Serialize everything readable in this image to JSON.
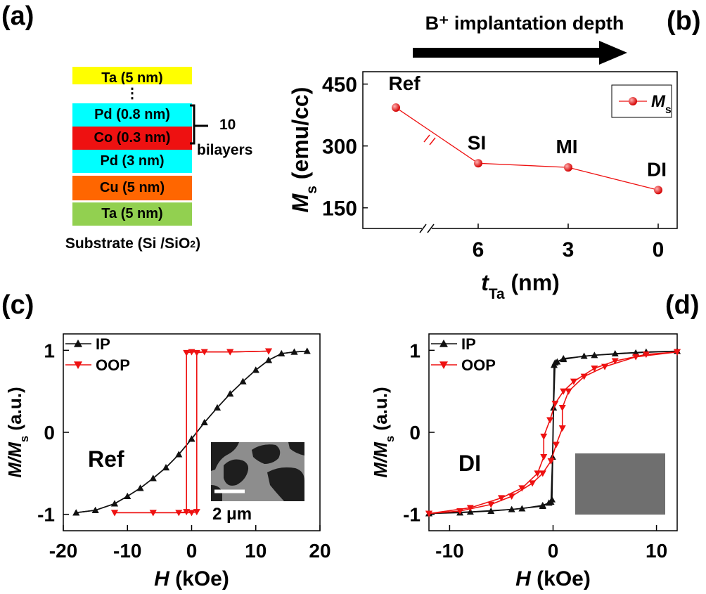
{
  "panel_a": {
    "label": "(a)",
    "layers": [
      {
        "text": "Ta (5 nm)",
        "color": "#ffff00"
      },
      {
        "text": "⋮",
        "color": "#ffffff"
      },
      {
        "text": "Pd (0.8 nm)",
        "color": "#00ffff"
      },
      {
        "text": "Co (0.3 nm)",
        "color": "#ee1111"
      },
      {
        "text": "Pd (3 nm)",
        "color": "#00ffff"
      },
      {
        "text": "Cu (5 nm)",
        "color": "#ff6600"
      },
      {
        "text": "Ta (5 nm)",
        "color": "#92d050"
      }
    ],
    "substrate": {
      "text": "Substrate (Si /SiO",
      "sub": "2",
      "close": ")",
      "color": "#5b9bd5"
    },
    "bracket_label_1": "10",
    "bracket_label_2": "bilayers"
  },
  "chart_data": [
    {
      "panel": "(b)",
      "type": "line",
      "title": "B⁺ implantation depth",
      "xlabel": "t_Ta (nm)",
      "ylabel": "M_s (emu/cc)",
      "x": [
        "Ref",
        "6",
        "3",
        "0"
      ],
      "point_labels": [
        "Ref",
        "SI",
        "MI",
        "DI"
      ],
      "series": [
        {
          "name": "M_s",
          "values": [
            393,
            258,
            248,
            193
          ],
          "color": "#ee1111"
        }
      ],
      "y_ticks": [
        150,
        300,
        450
      ],
      "ylim": [
        100,
        480
      ],
      "x_ticks": [
        "6",
        "3",
        "0"
      ],
      "axis_break": true,
      "legend": "top-right"
    },
    {
      "panel": "(c)",
      "type": "line",
      "xlabel": "H (kOe)",
      "ylabel": "M/M_s (a.u.)",
      "xlim": [
        -20,
        20
      ],
      "ylim": [
        -1.2,
        1.2
      ],
      "x_ticks": [
        -20,
        -10,
        0,
        10,
        20
      ],
      "y_ticks": [
        -1,
        0,
        1
      ],
      "annotation": "Ref",
      "inset_scale": "2 μm",
      "legend": "top-left",
      "series": [
        {
          "name": "IP",
          "color": "#111111",
          "marker": "triangle-up",
          "x": [
            -18,
            -15,
            -12,
            -10,
            -8,
            -6,
            -4,
            -2,
            0,
            2,
            4,
            6,
            8,
            10,
            12,
            14,
            16,
            18
          ],
          "y": [
            -0.98,
            -0.95,
            -0.87,
            -0.78,
            -0.68,
            -0.56,
            -0.43,
            -0.27,
            -0.08,
            0.12,
            0.3,
            0.47,
            0.62,
            0.76,
            0.88,
            0.96,
            0.98,
            0.99
          ]
        },
        {
          "name": "OOP",
          "color": "#ee1111",
          "marker": "triangle-down",
          "branches": [
            {
              "x": [
                -12,
                -6,
                -2,
                -0.8,
                -0.8,
                0,
                6,
                12
              ],
              "y": [
                -0.98,
                -0.98,
                -0.98,
                -0.97,
                0.97,
                0.98,
                0.98,
                0.99
              ]
            },
            {
              "x": [
                12,
                6,
                2,
                0.8,
                0.8,
                0,
                -6,
                -12
              ],
              "y": [
                0.99,
                0.98,
                0.98,
                0.97,
                -0.97,
                -0.98,
                -0.98,
                -0.98
              ]
            }
          ]
        }
      ]
    },
    {
      "panel": "(d)",
      "type": "line",
      "xlabel": "H (kOe)",
      "ylabel": "M/M_s (a.u.)",
      "xlim": [
        -12,
        12
      ],
      "ylim": [
        -1.2,
        1.2
      ],
      "x_ticks": [
        -10,
        0,
        10
      ],
      "y_ticks": [
        -1,
        0,
        1
      ],
      "annotation": "DI",
      "legend": "top-left",
      "series": [
        {
          "name": "IP",
          "color": "#111111",
          "marker": "triangle-up",
          "branches": [
            {
              "x": [
                -12,
                -8,
                -4,
                -1,
                -0.2,
                -0.05,
                0.1,
                0.4,
                1,
                3,
                6,
                9,
                12
              ],
              "y": [
                -0.99,
                -0.97,
                -0.94,
                -0.9,
                -0.85,
                -0.3,
                0.82,
                0.86,
                0.89,
                0.93,
                0.96,
                0.98,
                0.99
              ]
            },
            {
              "x": [
                12,
                8,
                4,
                1,
                0.2,
                0.05,
                -0.1,
                -0.4,
                -1,
                -3,
                -6,
                -9,
                -12
              ],
              "y": [
                0.99,
                0.97,
                0.94,
                0.9,
                0.85,
                0.3,
                -0.82,
                -0.86,
                -0.89,
                -0.93,
                -0.96,
                -0.98,
                -0.99
              ]
            }
          ]
        },
        {
          "name": "OOP",
          "color": "#ee1111",
          "marker": "triangle-down",
          "branches": [
            {
              "x": [
                -12,
                -9,
                -6,
                -4,
                -2,
                -1,
                -0.2,
                0.3,
                0.9,
                0.9,
                1.5,
                3,
                5,
                8,
                12
              ],
              "y": [
                -0.99,
                -0.96,
                -0.88,
                -0.78,
                -0.62,
                -0.5,
                -0.35,
                -0.15,
                0.05,
                0.3,
                0.5,
                0.68,
                0.8,
                0.92,
                0.98
              ]
            },
            {
              "x": [
                12,
                9,
                6,
                4,
                2,
                1,
                0.2,
                -0.3,
                -0.9,
                -0.9,
                -1.5,
                -3,
                -5,
                -8,
                -12
              ],
              "y": [
                0.98,
                0.95,
                0.87,
                0.78,
                0.62,
                0.5,
                0.35,
                0.15,
                -0.05,
                -0.3,
                -0.5,
                -0.68,
                -0.8,
                -0.92,
                -0.99
              ]
            }
          ]
        }
      ]
    }
  ]
}
